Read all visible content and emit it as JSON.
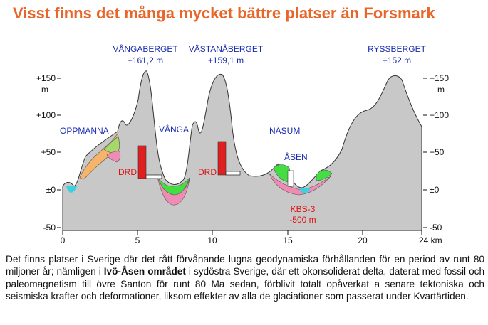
{
  "title": "Visst finns det många mycket bättre platser än Forsmark",
  "peaks": [
    {
      "name": "VÅNGABERGET",
      "height": "+161,2 m"
    },
    {
      "name": "VÄSTANÅBERGET",
      "height": "+159,1 m"
    },
    {
      "name": "RYSSBERGET",
      "height": "+152 m"
    }
  ],
  "areas": [
    "OPPMANNA",
    "VÅNGA",
    "NÄSUM",
    "ÅSEN"
  ],
  "drd_label": "DRD",
  "kbs_label": "KBS-3",
  "kbs_depth": "-500 m",
  "y_axis_ticks": [
    "+150",
    "+100",
    "+50",
    "±0",
    "-50"
  ],
  "y_axis_unit": "m",
  "x_axis_ticks": [
    "0",
    "5",
    "10",
    "15",
    "20",
    "24 km"
  ],
  "colors": {
    "title": "#e8662a",
    "terrain": "#c8c8c8",
    "water": "#3fd0e0",
    "green_layer": "#44dd44",
    "pink_layer": "#f08cb4",
    "orange_layer": "#f6b46a",
    "drd": "#e02020",
    "labels_blue": "#1a2db0",
    "labels_red": "#e01010"
  },
  "caption": {
    "part1": "Det finns platser i Sverige där det rått förvånande lugna geodynamiska förhållanden för en period av runt 80 miljoner år; nämligen i ",
    "bold": "Ivö-Åsen området",
    "part2": " i sydöstra Sverige, där ett okonsoliderat delta, daterat med fossil och paleomagnetism till övre Santon för runt 80 Ma sedan, förblivit totalt opåverkat a senare tektoniska och seismiska krafter och deformationer, liksom effekter av alla de glaciationer som passerat under Kvartärtiden."
  }
}
